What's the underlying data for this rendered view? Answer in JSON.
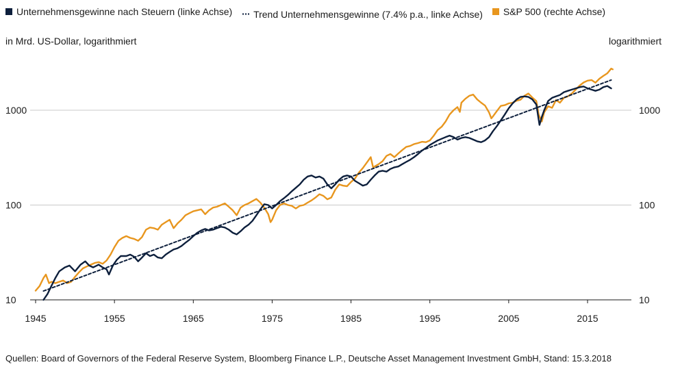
{
  "legend": {
    "profits_label": "Unternehmensgewinne nach Steuern (linke Achse)",
    "trend_label": "Trend Unternehmensgewinne (7.4% p.a., linke Achse)",
    "sp500_label": "S&P 500 (rechte Achse)"
  },
  "axes": {
    "left_unit": "in Mrd. US-Dollar, logarithmiert",
    "right_unit": "logarithmiert"
  },
  "source": "Quellen: Board of Governors of the Federal Reserve System, Bloomberg Finance L.P., Deutsche Asset Management Investment GmbH, Stand: 15.3.2018",
  "colors": {
    "profits": "#0d1f3c",
    "trend": "#0d1f3c",
    "sp500": "#e8961e",
    "grid": "#c8c8c8"
  },
  "chart_data": {
    "type": "line",
    "x_range": [
      1945,
      2019
    ],
    "xticks": [
      1945,
      1955,
      1965,
      1975,
      1985,
      1995,
      2005,
      2015
    ],
    "ylim_left": [
      10,
      4000
    ],
    "ylim_right": [
      10,
      4000
    ],
    "yscale": "log",
    "yticks_left": [
      10,
      100,
      1000
    ],
    "yticks_right": [
      10,
      100,
      1000
    ],
    "grid": "horizontal",
    "legend_position": "top",
    "series": [
      {
        "name": "Unternehmensgewinne nach Steuern (linke Achse)",
        "axis": "left",
        "style": "solid",
        "points": [
          [
            1946.0,
            10
          ],
          [
            1946.5,
            11.5
          ],
          [
            1947.0,
            14
          ],
          [
            1947.5,
            17
          ],
          [
            1948.0,
            20
          ],
          [
            1948.7,
            22
          ],
          [
            1949.3,
            23
          ],
          [
            1950.0,
            20
          ],
          [
            1950.7,
            23.5
          ],
          [
            1951.3,
            25.5
          ],
          [
            1951.8,
            23
          ],
          [
            1952.3,
            22
          ],
          [
            1953.0,
            23.5
          ],
          [
            1953.5,
            22
          ],
          [
            1954.0,
            21
          ],
          [
            1954.3,
            18.5
          ],
          [
            1954.8,
            23
          ],
          [
            1955.3,
            26.5
          ],
          [
            1955.8,
            29
          ],
          [
            1956.5,
            29
          ],
          [
            1957.0,
            30
          ],
          [
            1957.5,
            28.5
          ],
          [
            1958.0,
            25.5
          ],
          [
            1958.5,
            28
          ],
          [
            1959.0,
            31
          ],
          [
            1959.5,
            29
          ],
          [
            1960.0,
            30
          ],
          [
            1960.5,
            28
          ],
          [
            1961.0,
            27.5
          ],
          [
            1961.5,
            30
          ],
          [
            1962.0,
            32
          ],
          [
            1962.5,
            34
          ],
          [
            1963.0,
            35
          ],
          [
            1963.5,
            37
          ],
          [
            1964.0,
            40
          ],
          [
            1964.5,
            43
          ],
          [
            1965.0,
            47
          ],
          [
            1965.5,
            51
          ],
          [
            1966.0,
            54
          ],
          [
            1966.5,
            56
          ],
          [
            1967.0,
            54
          ],
          [
            1967.5,
            55
          ],
          [
            1968.0,
            57
          ],
          [
            1968.5,
            59
          ],
          [
            1969.0,
            58
          ],
          [
            1969.5,
            55
          ],
          [
            1970.0,
            51
          ],
          [
            1970.5,
            49
          ],
          [
            1971.0,
            53
          ],
          [
            1971.5,
            58
          ],
          [
            1972.0,
            62
          ],
          [
            1972.5,
            68
          ],
          [
            1973.0,
            78
          ],
          [
            1973.5,
            90
          ],
          [
            1974.0,
            102
          ],
          [
            1974.5,
            100
          ],
          [
            1975.0,
            92
          ],
          [
            1975.5,
            100
          ],
          [
            1976.0,
            110
          ],
          [
            1976.5,
            118
          ],
          [
            1977.0,
            128
          ],
          [
            1977.5,
            140
          ],
          [
            1978.0,
            152
          ],
          [
            1978.5,
            165
          ],
          [
            1979.0,
            185
          ],
          [
            1979.5,
            200
          ],
          [
            1980.0,
            205
          ],
          [
            1980.5,
            195
          ],
          [
            1981.0,
            200
          ],
          [
            1981.5,
            190
          ],
          [
            1982.0,
            165
          ],
          [
            1982.5,
            150
          ],
          [
            1983.0,
            165
          ],
          [
            1983.5,
            185
          ],
          [
            1984.0,
            200
          ],
          [
            1984.5,
            205
          ],
          [
            1985.0,
            200
          ],
          [
            1985.5,
            180
          ],
          [
            1986.0,
            170
          ],
          [
            1986.5,
            160
          ],
          [
            1987.0,
            165
          ],
          [
            1987.5,
            185
          ],
          [
            1988.0,
            205
          ],
          [
            1988.5,
            225
          ],
          [
            1989.0,
            230
          ],
          [
            1989.5,
            225
          ],
          [
            1990.0,
            240
          ],
          [
            1990.5,
            250
          ],
          [
            1991.0,
            255
          ],
          [
            1991.5,
            270
          ],
          [
            1992.0,
            285
          ],
          [
            1992.5,
            300
          ],
          [
            1993.0,
            320
          ],
          [
            1993.5,
            345
          ],
          [
            1994.0,
            375
          ],
          [
            1994.5,
            400
          ],
          [
            1995.0,
            430
          ],
          [
            1995.5,
            455
          ],
          [
            1996.0,
            480
          ],
          [
            1996.5,
            500
          ],
          [
            1997.0,
            520
          ],
          [
            1997.5,
            540
          ],
          [
            1998.0,
            520
          ],
          [
            1998.5,
            490
          ],
          [
            1999.0,
            510
          ],
          [
            1999.5,
            520
          ],
          [
            2000.0,
            510
          ],
          [
            2000.5,
            490
          ],
          [
            2001.0,
            470
          ],
          [
            2001.5,
            460
          ],
          [
            2002.0,
            480
          ],
          [
            2002.5,
            520
          ],
          [
            2003.0,
            600
          ],
          [
            2003.5,
            680
          ],
          [
            2004.0,
            780
          ],
          [
            2004.5,
            900
          ],
          [
            2005.0,
            1050
          ],
          [
            2005.5,
            1180
          ],
          [
            2006.0,
            1300
          ],
          [
            2006.5,
            1380
          ],
          [
            2007.0,
            1400
          ],
          [
            2007.5,
            1380
          ],
          [
            2008.0,
            1300
          ],
          [
            2008.5,
            1150
          ],
          [
            2008.9,
            700
          ],
          [
            2009.2,
            850
          ],
          [
            2009.5,
            1000
          ],
          [
            2010.0,
            1250
          ],
          [
            2010.5,
            1350
          ],
          [
            2011.0,
            1400
          ],
          [
            2011.5,
            1450
          ],
          [
            2012.0,
            1550
          ],
          [
            2012.5,
            1600
          ],
          [
            2013.0,
            1650
          ],
          [
            2013.5,
            1700
          ],
          [
            2014.0,
            1750
          ],
          [
            2014.5,
            1780
          ],
          [
            2015.0,
            1700
          ],
          [
            2015.5,
            1650
          ],
          [
            2016.0,
            1600
          ],
          [
            2016.5,
            1650
          ],
          [
            2017.0,
            1750
          ],
          [
            2017.5,
            1800
          ],
          [
            2018.0,
            1700
          ]
        ]
      },
      {
        "name": "Trend Unternehmensgewinne (7.4% p.a., linke Achse)",
        "axis": "left",
        "style": "dotted",
        "points": [
          [
            1946,
            12.4
          ],
          [
            2018,
            2081
          ]
        ]
      },
      {
        "name": "S&P 500 (rechte Achse)",
        "axis": "right",
        "style": "solid",
        "points": [
          [
            1945.0,
            12.5
          ],
          [
            1945.5,
            14
          ],
          [
            1946.0,
            17
          ],
          [
            1946.3,
            18.5
          ],
          [
            1946.7,
            15
          ],
          [
            1947.0,
            15.5
          ],
          [
            1947.5,
            15
          ],
          [
            1948.0,
            15.5
          ],
          [
            1948.5,
            16
          ],
          [
            1949.0,
            15
          ],
          [
            1949.5,
            15.5
          ],
          [
            1950.0,
            17.5
          ],
          [
            1950.5,
            19.5
          ],
          [
            1951.0,
            21.5
          ],
          [
            1951.5,
            22.5
          ],
          [
            1952.0,
            23.5
          ],
          [
            1952.5,
            24.5
          ],
          [
            1953.0,
            25
          ],
          [
            1953.5,
            24
          ],
          [
            1954.0,
            26
          ],
          [
            1954.5,
            30
          ],
          [
            1955.0,
            36
          ],
          [
            1955.5,
            42
          ],
          [
            1956.0,
            45
          ],
          [
            1956.5,
            47
          ],
          [
            1957.0,
            45
          ],
          [
            1957.5,
            44
          ],
          [
            1958.0,
            42
          ],
          [
            1958.5,
            46
          ],
          [
            1959.0,
            55
          ],
          [
            1959.5,
            58
          ],
          [
            1960.0,
            57
          ],
          [
            1960.5,
            55
          ],
          [
            1961.0,
            62
          ],
          [
            1961.5,
            66
          ],
          [
            1962.0,
            70
          ],
          [
            1962.5,
            57
          ],
          [
            1963.0,
            64
          ],
          [
            1963.5,
            70
          ],
          [
            1964.0,
            78
          ],
          [
            1964.5,
            82
          ],
          [
            1965.0,
            86
          ],
          [
            1965.5,
            88
          ],
          [
            1966.0,
            90
          ],
          [
            1966.5,
            80
          ],
          [
            1967.0,
            88
          ],
          [
            1967.5,
            94
          ],
          [
            1968.0,
            96
          ],
          [
            1968.5,
            100
          ],
          [
            1969.0,
            104
          ],
          [
            1969.5,
            96
          ],
          [
            1970.0,
            88
          ],
          [
            1970.5,
            78
          ],
          [
            1971.0,
            94
          ],
          [
            1971.5,
            100
          ],
          [
            1972.0,
            104
          ],
          [
            1972.5,
            110
          ],
          [
            1973.0,
            116
          ],
          [
            1973.5,
            106
          ],
          [
            1974.0,
            94
          ],
          [
            1974.5,
            80
          ],
          [
            1974.8,
            66
          ],
          [
            1975.0,
            70
          ],
          [
            1975.5,
            88
          ],
          [
            1976.0,
            100
          ],
          [
            1976.5,
            104
          ],
          [
            1977.0,
            100
          ],
          [
            1977.5,
            98
          ],
          [
            1978.0,
            92
          ],
          [
            1978.5,
            98
          ],
          [
            1979.0,
            100
          ],
          [
            1979.5,
            106
          ],
          [
            1980.0,
            112
          ],
          [
            1980.5,
            120
          ],
          [
            1981.0,
            130
          ],
          [
            1981.5,
            125
          ],
          [
            1982.0,
            115
          ],
          [
            1982.5,
            120
          ],
          [
            1983.0,
            145
          ],
          [
            1983.5,
            165
          ],
          [
            1984.0,
            160
          ],
          [
            1984.5,
            158
          ],
          [
            1985.0,
            175
          ],
          [
            1985.5,
            190
          ],
          [
            1986.0,
            220
          ],
          [
            1986.5,
            245
          ],
          [
            1987.0,
            280
          ],
          [
            1987.5,
            320
          ],
          [
            1987.8,
            250
          ],
          [
            1988.0,
            255
          ],
          [
            1988.5,
            270
          ],
          [
            1989.0,
            290
          ],
          [
            1989.5,
            330
          ],
          [
            1990.0,
            345
          ],
          [
            1990.5,
            320
          ],
          [
            1991.0,
            350
          ],
          [
            1991.5,
            380
          ],
          [
            1992.0,
            410
          ],
          [
            1992.5,
            420
          ],
          [
            1993.0,
            440
          ],
          [
            1993.5,
            450
          ],
          [
            1994.0,
            465
          ],
          [
            1994.5,
            460
          ],
          [
            1995.0,
            480
          ],
          [
            1995.5,
            540
          ],
          [
            1996.0,
            620
          ],
          [
            1996.5,
            670
          ],
          [
            1997.0,
            760
          ],
          [
            1997.5,
            900
          ],
          [
            1998.0,
            1000
          ],
          [
            1998.5,
            1080
          ],
          [
            1998.8,
            960
          ],
          [
            1999.0,
            1200
          ],
          [
            1999.5,
            1320
          ],
          [
            2000.0,
            1420
          ],
          [
            2000.5,
            1460
          ],
          [
            2001.0,
            1300
          ],
          [
            2001.5,
            1200
          ],
          [
            2002.0,
            1120
          ],
          [
            2002.5,
            950
          ],
          [
            2002.8,
            820
          ],
          [
            2003.0,
            860
          ],
          [
            2003.5,
            980
          ],
          [
            2004.0,
            1110
          ],
          [
            2004.5,
            1130
          ],
          [
            2005.0,
            1180
          ],
          [
            2005.5,
            1200
          ],
          [
            2006.0,
            1260
          ],
          [
            2006.5,
            1290
          ],
          [
            2007.0,
            1420
          ],
          [
            2007.5,
            1500
          ],
          [
            2008.0,
            1360
          ],
          [
            2008.5,
            1250
          ],
          [
            2008.8,
            900
          ],
          [
            2009.2,
            760
          ],
          [
            2009.5,
            950
          ],
          [
            2010.0,
            1100
          ],
          [
            2010.5,
            1060
          ],
          [
            2011.0,
            1280
          ],
          [
            2011.5,
            1200
          ],
          [
            2012.0,
            1350
          ],
          [
            2012.5,
            1400
          ],
          [
            2013.0,
            1500
          ],
          [
            2013.5,
            1650
          ],
          [
            2014.0,
            1820
          ],
          [
            2014.5,
            1960
          ],
          [
            2015.0,
            2050
          ],
          [
            2015.5,
            2080
          ],
          [
            2016.0,
            1950
          ],
          [
            2016.5,
            2150
          ],
          [
            2017.0,
            2300
          ],
          [
            2017.5,
            2450
          ],
          [
            2018.0,
            2750
          ],
          [
            2018.2,
            2700
          ]
        ]
      }
    ]
  }
}
